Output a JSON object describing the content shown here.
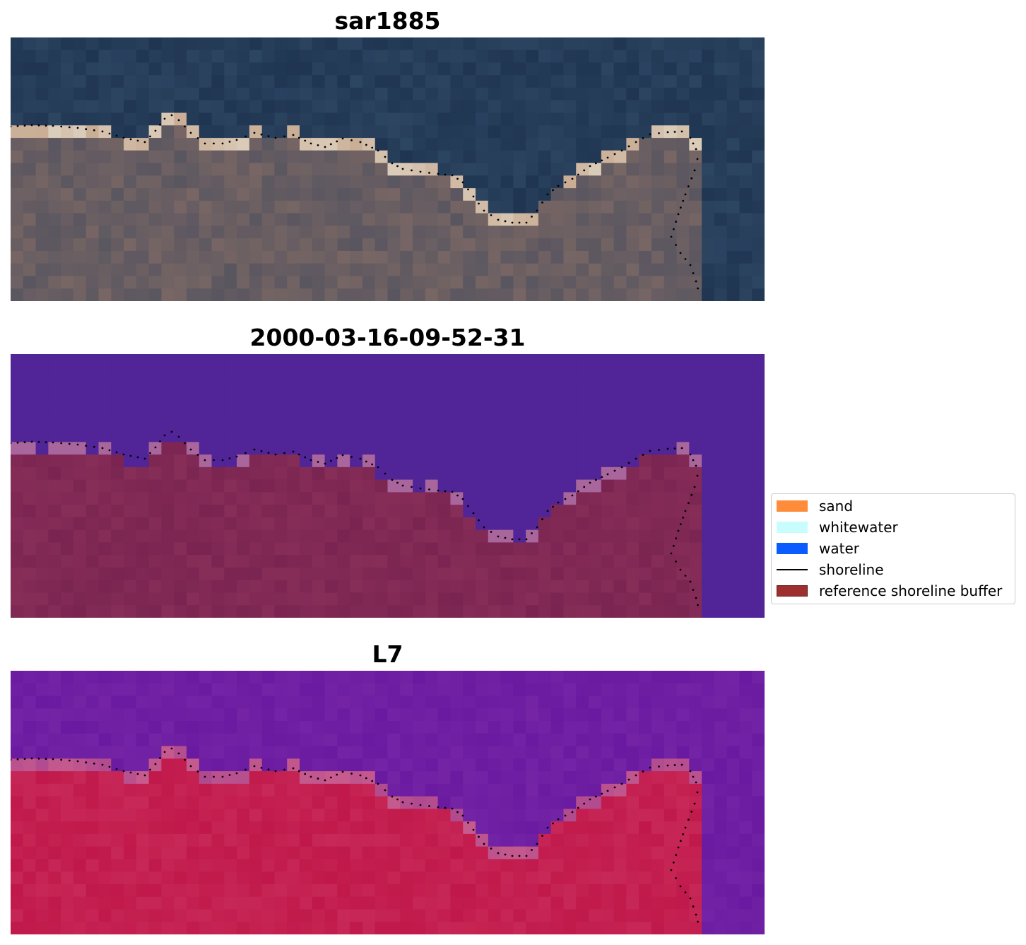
{
  "panels": [
    {
      "title": "sar1885",
      "kind": "rgb"
    },
    {
      "title": "2000-03-16-09-52-31",
      "kind": "classified"
    },
    {
      "title": "L7",
      "kind": "index"
    }
  ],
  "legend": {
    "items": [
      {
        "label": "sand",
        "color": "#ff8c3a",
        "type": "patch"
      },
      {
        "label": "whitewater",
        "color": "#c9fdfd",
        "type": "patch"
      },
      {
        "label": "water",
        "color": "#0a5cff",
        "type": "patch"
      },
      {
        "label": "shoreline",
        "color": "#000000",
        "type": "line"
      },
      {
        "label": "reference shoreline buffer",
        "color": "#9e2f2f",
        "type": "patch"
      }
    ]
  },
  "colors": {
    "water_dark": "#1f3552",
    "class_water": "#512597",
    "class_land": "#7a2451",
    "class_whitewater": "#a9669c",
    "index_water": "#6a1aa0",
    "index_land": "#c0184a"
  }
}
